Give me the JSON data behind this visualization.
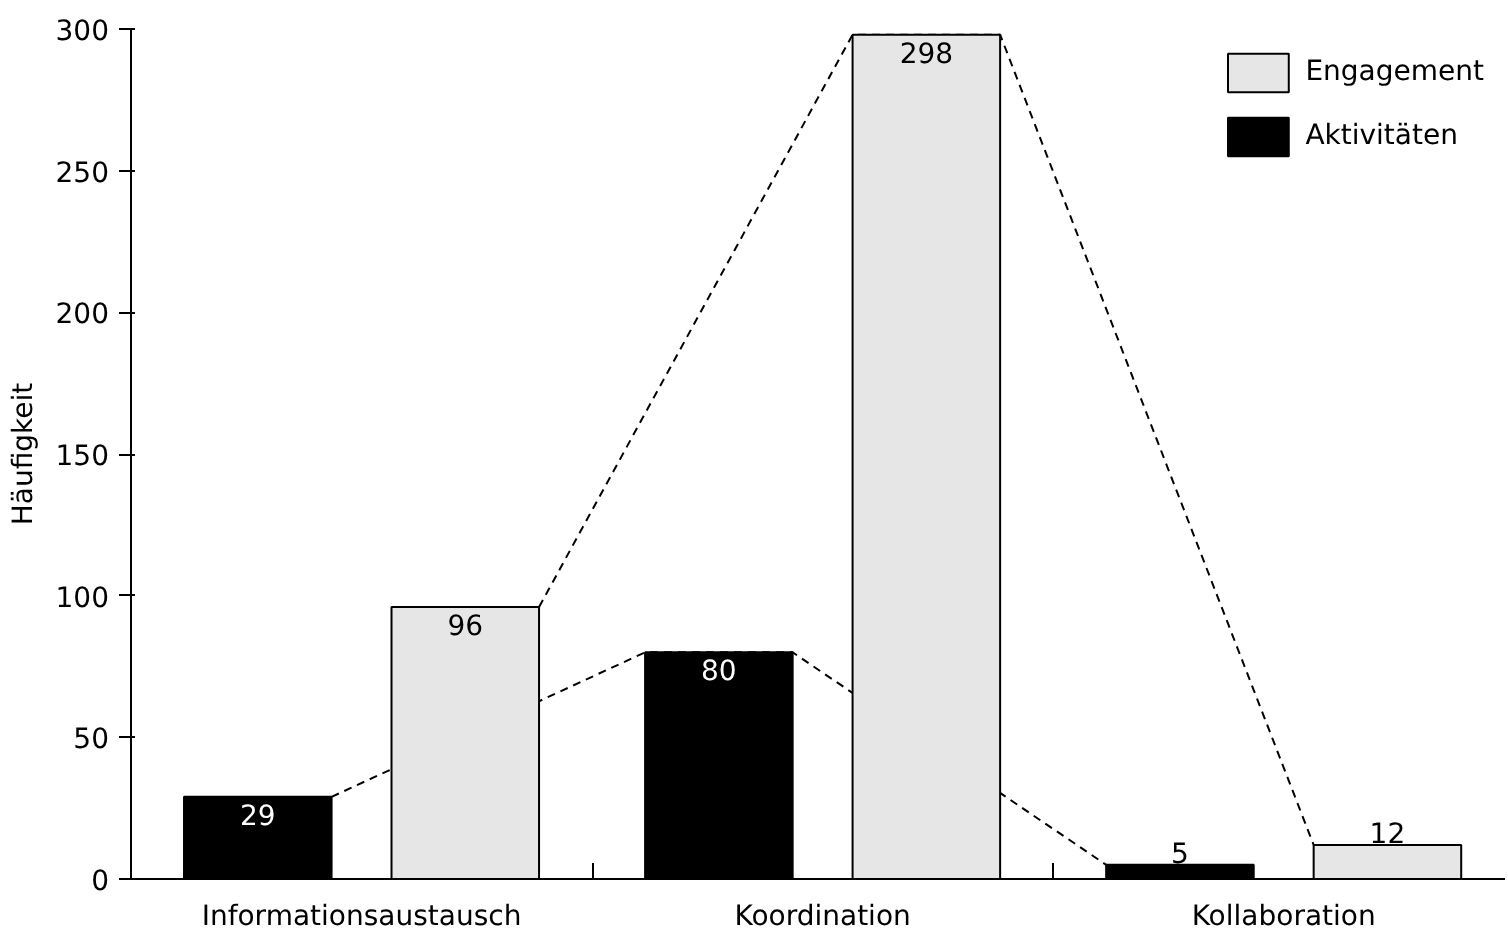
{
  "chart_data": {
    "type": "bar",
    "ylabel": "Häufigkeit",
    "categories": [
      "Informationsaustausch",
      "Koordination",
      "Kollaboration"
    ],
    "series": [
      {
        "name": "Aktivitäten",
        "color": "#000000",
        "values": [
          29,
          80,
          5
        ]
      },
      {
        "name": "Engagement",
        "color": "#e6e6e6",
        "values": [
          96,
          298,
          12
        ]
      }
    ],
    "ylim": [
      0,
      300
    ],
    "yticks": [
      0,
      50,
      100,
      150,
      200,
      250,
      300
    ],
    "grid": false,
    "legend": "top right",
    "data_labels": true
  }
}
